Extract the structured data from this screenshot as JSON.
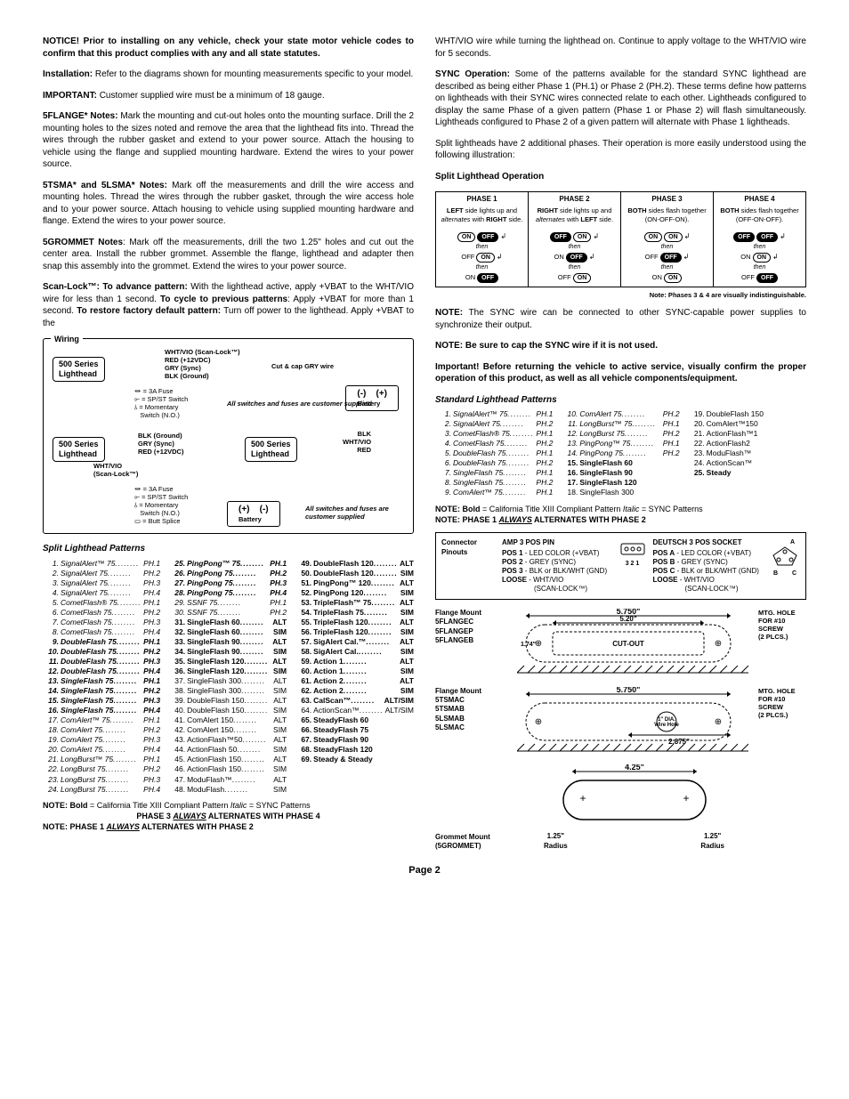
{
  "left": {
    "notice": "NOTICE! Prior to installing on any vehicle, check your state motor vehicle codes to confirm that this product complies with any and all state statutes.",
    "install_lead": "Installation:",
    "install_body": " Refer to the diagrams shown for mounting measurements specific to your model.",
    "important_lead": "IMPORTANT:",
    "important_body": " Customer supplied wire must be a minimum of 18 gauge.",
    "flange_lead": "5FLANGE* Notes:",
    "flange_body": " Mark the mounting and cut-out holes onto the mounting surface. Drill the 2 mounting holes to the sizes noted and remove the area that the lighthead fits into. Thread the wires through the rubber gasket and extend to your power source. Attach the housing to vehicle using the flange and supplied mounting hardware. Extend the wires to your power source.",
    "tsma_lead": "5TSMA* and 5LSMA* Notes:",
    "tsma_body": " Mark off the measurements and drill the wire access and mounting holes. Thread the wires through the rubber gasket, through the wire access hole and to your power source. Attach housing to vehicle using supplied mounting hardware and flange. Extend the wires to your power source.",
    "grommet_lead": "5GROMMET Notes",
    "grommet_body": ": Mark off the measurements, drill the two 1.25\" holes and cut out the center area. Install the rubber grommet. Assemble the flange, lighthead and adapter then snap this assembly into the grommet. Extend the wires to your power source.",
    "scan_lead": "Scan-Lock™: To advance pattern:",
    "scan_body1": " With the lighthead active, apply +VBAT to the WHT/VIO wire for less than 1 second. ",
    "scan_lead2": "To cycle to previous patterns",
    "scan_body2": ": Apply +VBAT for more than 1 second. ",
    "scan_lead3": "To restore factory default pattern:",
    "scan_body3": " Turn off power to the lighthead. Apply +VBAT to the ",
    "wiring_title": "Wiring",
    "wiring": {
      "head_label": "500 Series\nLighthead",
      "wires": [
        "WHT/VIO (Scan-Lock™)",
        "RED (+12VDC)",
        "GRY (Sync)",
        "BLK (Ground)"
      ],
      "cut_cap": "Cut & cap GRY wire",
      "fuse": "= 3A Fuse",
      "spst": "= SP/ST Switch",
      "mom": "= Momentary\nSwitch (N.O.)",
      "supplied": "All switches and fuses\nare customer supplied",
      "battery": "Battery",
      "butt": "= Butt Splice",
      "wires2": [
        "BLK (Ground)",
        "GRY (Sync)",
        "RED (+12VDC)"
      ],
      "scan_label": "WHT/VIO\n(Scan-Lock™)",
      "blk": "BLK",
      "whtvio": "WHT/VIO",
      "red": "RED"
    },
    "split_title": "Split Lighthead Patterns",
    "split_patterns": {
      "c1": [
        {
          "n": "1.",
          "name": "SignalAlert™ 75",
          "ph": "PH.1",
          "i": true
        },
        {
          "n": "2.",
          "name": "SignalAlert 75",
          "ph": "PH.2",
          "i": true
        },
        {
          "n": "3.",
          "name": "SignalAlert 75",
          "ph": "PH.3",
          "i": true
        },
        {
          "n": "4.",
          "name": "SignalAlert 75",
          "ph": "PH.4",
          "i": true
        },
        {
          "n": "5.",
          "name": "CometFlash® 75",
          "ph": "PH.1",
          "i": true
        },
        {
          "n": "6.",
          "name": "CometFlash 75",
          "ph": "PH.2",
          "i": true
        },
        {
          "n": "7.",
          "name": "CometFlash 75",
          "ph": "PH.3",
          "i": true
        },
        {
          "n": "8.",
          "name": "CometFlash 75",
          "ph": "PH.4",
          "i": true
        },
        {
          "n": "9.",
          "name": "DoubleFlash 75",
          "ph": "PH.1",
          "i": true,
          "b": true
        },
        {
          "n": "10.",
          "name": "DoubleFlash 75",
          "ph": "PH.2",
          "i": true,
          "b": true
        },
        {
          "n": "11.",
          "name": "DoubleFlash 75",
          "ph": "PH.3",
          "i": true,
          "b": true
        },
        {
          "n": "12.",
          "name": "DoubleFlash 75",
          "ph": "PH.4",
          "i": true,
          "b": true
        },
        {
          "n": "13.",
          "name": "SingleFlash 75",
          "ph": "PH.1",
          "i": true,
          "b": true
        },
        {
          "n": "14.",
          "name": "SingleFlash 75",
          "ph": "PH.2",
          "i": true,
          "b": true
        },
        {
          "n": "15.",
          "name": "SingleFlash 75",
          "ph": "PH.3",
          "i": true,
          "b": true
        },
        {
          "n": "16.",
          "name": "SingleFlash 75",
          "ph": "PH.4",
          "i": true,
          "b": true
        },
        {
          "n": "17.",
          "name": "ComAlert™ 75",
          "ph": "PH.1",
          "i": true
        },
        {
          "n": "18.",
          "name": "ComAlert 75",
          "ph": "PH.2",
          "i": true
        },
        {
          "n": "19.",
          "name": "ComAlert 75",
          "ph": "PH.3",
          "i": true
        },
        {
          "n": "20.",
          "name": "ComAlert 75",
          "ph": "PH.4",
          "i": true
        },
        {
          "n": "21.",
          "name": "LongBurst™ 75",
          "ph": "PH.1",
          "i": true
        },
        {
          "n": "22.",
          "name": "LongBurst 75",
          "ph": "PH.2",
          "i": true
        },
        {
          "n": "23.",
          "name": "LongBurst 75",
          "ph": "PH.3",
          "i": true
        },
        {
          "n": "24.",
          "name": "LongBurst 75",
          "ph": "PH.4",
          "i": true
        }
      ],
      "c2": [
        {
          "n": "25.",
          "name": "PingPong™ 75",
          "ph": "PH.1",
          "i": true,
          "b": true
        },
        {
          "n": "26.",
          "name": "PingPong 75",
          "ph": "PH.2",
          "i": true,
          "b": true
        },
        {
          "n": "27.",
          "name": "PingPong 75",
          "ph": "PH.3",
          "i": true,
          "b": true
        },
        {
          "n": "28.",
          "name": "PingPong 75",
          "ph": "PH.4",
          "i": true,
          "b": true
        },
        {
          "n": "29.",
          "name": "SSNF 75",
          "ph": "PH.1",
          "i": true
        },
        {
          "n": "30.",
          "name": "SSNF 75",
          "ph": "PH.2",
          "i": true
        },
        {
          "n": "31.",
          "name": "SingleFlash 60",
          "ph": "ALT",
          "b": true
        },
        {
          "n": "32.",
          "name": "SingleFlash 60",
          "ph": "SIM",
          "b": true
        },
        {
          "n": "33.",
          "name": "SingleFlash 90",
          "ph": "ALT",
          "b": true
        },
        {
          "n": "34.",
          "name": "SingleFlash 90",
          "ph": "SIM",
          "b": true
        },
        {
          "n": "35.",
          "name": "SingleFlash 120",
          "ph": "ALT",
          "b": true
        },
        {
          "n": "36.",
          "name": "SingleFlash 120",
          "ph": "SIM",
          "b": true
        },
        {
          "n": "37.",
          "name": "SingleFlash 300",
          "ph": "ALT"
        },
        {
          "n": "38.",
          "name": "SingleFlash 300",
          "ph": "SIM"
        },
        {
          "n": "39.",
          "name": "DoubleFlash 150",
          "ph": "ALT"
        },
        {
          "n": "40.",
          "name": "DoubleFlash 150",
          "ph": "SIM"
        },
        {
          "n": "41.",
          "name": "ComAlert 150",
          "ph": "ALT"
        },
        {
          "n": "42.",
          "name": "ComAlert 150",
          "ph": "SIM"
        },
        {
          "n": "43.",
          "name": "ActionFlash™50",
          "ph": "ALT"
        },
        {
          "n": "44.",
          "name": "ActionFlash 50",
          "ph": "SIM"
        },
        {
          "n": "45.",
          "name": "ActionFlash 150",
          "ph": "ALT"
        },
        {
          "n": "46.",
          "name": "ActionFlash 150",
          "ph": "SIM"
        },
        {
          "n": "47.",
          "name": "ModuFlash™",
          "ph": "ALT"
        },
        {
          "n": "48.",
          "name": "ModuFlash",
          "ph": "SIM"
        }
      ],
      "c3": [
        {
          "n": "49.",
          "name": "DoubleFlash 120",
          "ph": "ALT",
          "b": true
        },
        {
          "n": "50.",
          "name": "DoubleFlash 120",
          "ph": "SIM",
          "b": true
        },
        {
          "n": "51.",
          "name": "PingPong™ 120",
          "ph": "ALT",
          "b": true
        },
        {
          "n": "52.",
          "name": "PingPong 120",
          "ph": "SIM",
          "b": true
        },
        {
          "n": "53.",
          "name": "TripleFlash™ 75",
          "ph": "ALT",
          "b": true
        },
        {
          "n": "54.",
          "name": "TripleFlash 75",
          "ph": "SIM",
          "b": true
        },
        {
          "n": "55.",
          "name": "TripleFlash 120",
          "ph": "ALT",
          "b": true
        },
        {
          "n": "56.",
          "name": "TripleFlash 120",
          "ph": "SIM",
          "b": true
        },
        {
          "n": "57.",
          "name": "SigAlert Cal.™",
          "ph": "ALT",
          "b": true
        },
        {
          "n": "58.",
          "name": "SigAlert Cal.",
          "ph": "SIM",
          "b": true
        },
        {
          "n": "59.",
          "name": "Action 1",
          "ph": "ALT",
          "b": true
        },
        {
          "n": "60.",
          "name": "Action 1",
          "ph": "SIM",
          "b": true
        },
        {
          "n": "61.",
          "name": "Action 2",
          "ph": "ALT",
          "b": true
        },
        {
          "n": "62.",
          "name": "Action 2",
          "ph": "SIM",
          "b": true
        },
        {
          "n": "63.",
          "name": "CalScan™",
          "ph": "ALT/SIM",
          "b": true
        },
        {
          "n": "64.",
          "name": "ActionScan™",
          "ph": "ALT/SIM"
        },
        {
          "n": "65.",
          "name": "SteadyFlash 60",
          "ph": "",
          "b": true
        },
        {
          "n": "66.",
          "name": "SteadyFlash 75",
          "ph": "",
          "b": true
        },
        {
          "n": "67.",
          "name": "SteadyFlash 90",
          "ph": "",
          "b": true
        },
        {
          "n": "68.",
          "name": "SteadyFlash 120",
          "ph": "",
          "b": true
        },
        {
          "n": "69.",
          "name": "Steady & Steady",
          "ph": "",
          "b": true
        }
      ]
    },
    "note_bold": "NOTE: Bold",
    "note_bold_body": " = California Title XIII Compliant Pattern  ",
    "note_italic": "Italic",
    "note_italic_body": " = SYNC Patterns",
    "phase34": "PHASE 3 ",
    "phase34_u": "ALWAYS",
    "phase34_b": " ALTERNATES WITH PHASE 4",
    "phase12_lead": "NOTE: PHASE 1 ",
    "phase12_u": "ALWAYS",
    "phase12_b": " ALTERNATES WITH PHASE 2"
  },
  "right": {
    "cont": "WHT/VIO wire while turning the lighthead on. Continue to apply voltage to the WHT/VIO wire for 5 seconds.",
    "sync_lead": "SYNC Operation:",
    "sync_body": " Some of the patterns available for the standard SYNC lighthead are described as being either Phase 1 (PH.1) or Phase 2 (PH.2). These terms define how patterns on lightheads with their SYNC wires connected relate to each other. Lightheads configured to display the same Phase of a given pattern (Phase 1 or Phase 2) will flash simultaneously. Lightheads configured to Phase 2 of a given pattern will alternate with Phase 1 lightheads.",
    "split_intro": "Split lightheads have 2 additional phases. Their operation is more easily understood using the following illustration:",
    "split_op_title": "Split Lighthead Operation",
    "phases": [
      {
        "t": "PHASE 1",
        "d1": "LEFT",
        "d2": " side lights up and ",
        "d3": "alternates",
        "d4": " with ",
        "d5": "RIGHT",
        "d6": " side.",
        "seq": [
          [
            "ON",
            "OFF"
          ],
          [
            "OFF",
            "ON"
          ],
          [
            "ON",
            "OFF"
          ]
        ]
      },
      {
        "t": "PHASE 2",
        "d1": "RIGHT",
        "d2": " side lights up and ",
        "d3": "alternates",
        "d4": " with ",
        "d5": "LEFT",
        "d6": " side.",
        "seq": [
          [
            "OFF",
            "ON"
          ],
          [
            "ON",
            "OFF"
          ],
          [
            "OFF",
            "ON"
          ]
        ]
      },
      {
        "t": "PHASE 3",
        "d1": "BOTH",
        "d2": " sides flash together (ON-OFF-ON).",
        "seq": [
          [
            "ON",
            "ON"
          ],
          [
            "OFF",
            "OFF"
          ],
          [
            "ON",
            "ON"
          ]
        ]
      },
      {
        "t": "PHASE 4",
        "d1": "BOTH",
        "d2": " sides flash together (OFF-ON-OFF).",
        "seq": [
          [
            "OFF",
            "OFF"
          ],
          [
            "ON",
            "ON"
          ],
          [
            "OFF",
            "OFF"
          ]
        ]
      }
    ],
    "phase_note": "Note: Phases 3 & 4 are visually indistinguishable.",
    "sync_note_lead": "NOTE:",
    "sync_note_body": " The SYNC wire can be connected to other SYNC-capable power supplies to synchronize their output.",
    "cap_note": "NOTE: Be sure to cap the SYNC wire if it is not used.",
    "important2": "Important! Before returning the vehicle to active service, visually confirm the proper operation of this product, as well as all vehicle components/equipment.",
    "std_title": "Standard Lighthead Patterns",
    "std_patterns": {
      "c1": [
        {
          "n": "1.",
          "name": "SignalAlert™ 75",
          "ph": "PH.1",
          "i": true
        },
        {
          "n": "2.",
          "name": "SignalAlert 75",
          "ph": "PH.2",
          "i": true
        },
        {
          "n": "3.",
          "name": "CometFlash® 75",
          "ph": "PH.1",
          "i": true
        },
        {
          "n": "4.",
          "name": "CometFlash 75",
          "ph": "PH.2",
          "i": true
        },
        {
          "n": "5.",
          "name": "DoubleFlash 75",
          "ph": "PH.1",
          "i": true
        },
        {
          "n": "6.",
          "name": "DoubleFlash 75",
          "ph": "PH.2",
          "i": true
        },
        {
          "n": "7.",
          "name": "SingleFlash 75",
          "ph": "PH.1",
          "i": true
        },
        {
          "n": "8.",
          "name": "SingleFlash 75",
          "ph": "PH.2",
          "i": true
        },
        {
          "n": "9.",
          "name": "ComAlert™ 75",
          "ph": "PH.1",
          "i": true
        }
      ],
      "c2": [
        {
          "n": "10.",
          "name": "ComAlert 75",
          "ph": "PH.2",
          "i": true
        },
        {
          "n": "11.",
          "name": "LongBurst™ 75",
          "ph": "PH.1",
          "i": true
        },
        {
          "n": "12.",
          "name": "LongBurst 75",
          "ph": "PH.2",
          "i": true
        },
        {
          "n": "13.",
          "name": "PingPong™ 75",
          "ph": "PH.1",
          "i": true
        },
        {
          "n": "14.",
          "name": "PingPong 75",
          "ph": "PH.2",
          "i": true
        },
        {
          "n": "15.",
          "name": "SingleFlash 60",
          "ph": "",
          "b": true
        },
        {
          "n": "16.",
          "name": "SingleFlash 90",
          "ph": "",
          "b": true
        },
        {
          "n": "17.",
          "name": "SingleFlash 120",
          "ph": "",
          "b": true
        },
        {
          "n": "18.",
          "name": "SingleFlash 300",
          "ph": ""
        }
      ],
      "c3": [
        {
          "n": "19.",
          "name": "DoubleFlash 150",
          "ph": ""
        },
        {
          "n": "20.",
          "name": "ComAlert™150",
          "ph": ""
        },
        {
          "n": "21.",
          "name": "ActionFlash™1",
          "ph": ""
        },
        {
          "n": "22.",
          "name": "ActionFlash2",
          "ph": ""
        },
        {
          "n": "23.",
          "name": "ModuFlash™",
          "ph": ""
        },
        {
          "n": "24.",
          "name": "ActionScan™",
          "ph": ""
        },
        {
          "n": "25.",
          "name": "Steady",
          "ph": "",
          "b": true
        }
      ]
    },
    "pinout_title": "Connector Pinouts",
    "amp_title": "AMP 3 POS PIN",
    "amp": [
      "POS 1 - LED COLOR (+VBAT)",
      "POS 2 - GREY (SYNC)",
      "POS 3 - BLK or BLK/WHT (GND)",
      "LOOSE - WHT/VIO",
      "(SCAN-LOCK™)"
    ],
    "deutsch_title": "DEUTSCH 3 POS SOCKET",
    "deutsch": [
      "POS A - LED COLOR (+VBAT)",
      "POS B - GREY (SYNC)",
      "POS C - BLK or BLK/WHT (GND)",
      "LOOSE - WHT/VIO",
      "(SCAN-LOCK™)"
    ],
    "mount1_label": "Flange Mount\n5FLANGEC\n5FLANGEP\n5FLANGEB",
    "mount1": {
      "w": "5.750\"",
      "inner": "5.20\"",
      "h": "1.74\"",
      "cutout": "CUT-OUT",
      "mtg": "MTG. HOLE\nFOR #10\nSCREW\n(2 PLCS.)"
    },
    "mount2_label": "Flange Mount\n5TSMAC\n5TSMAB\n5LSMAB\n5LSMAC",
    "mount2": {
      "w": "5.750\"",
      "inner": "2.875\"",
      "hole": "1\" DIA.\nWire Hole",
      "mtg": "MTG. HOLE\nFOR #10\nSCREW\n(2 PLCS.)"
    },
    "mount3_label": "Grommet Mount\n(5GROMMET)",
    "mount3": {
      "w": "4.25\"",
      "r1": "1.25\"\nRadius",
      "r2": "1.25\"\nRadius"
    }
  },
  "page": "Page 2"
}
